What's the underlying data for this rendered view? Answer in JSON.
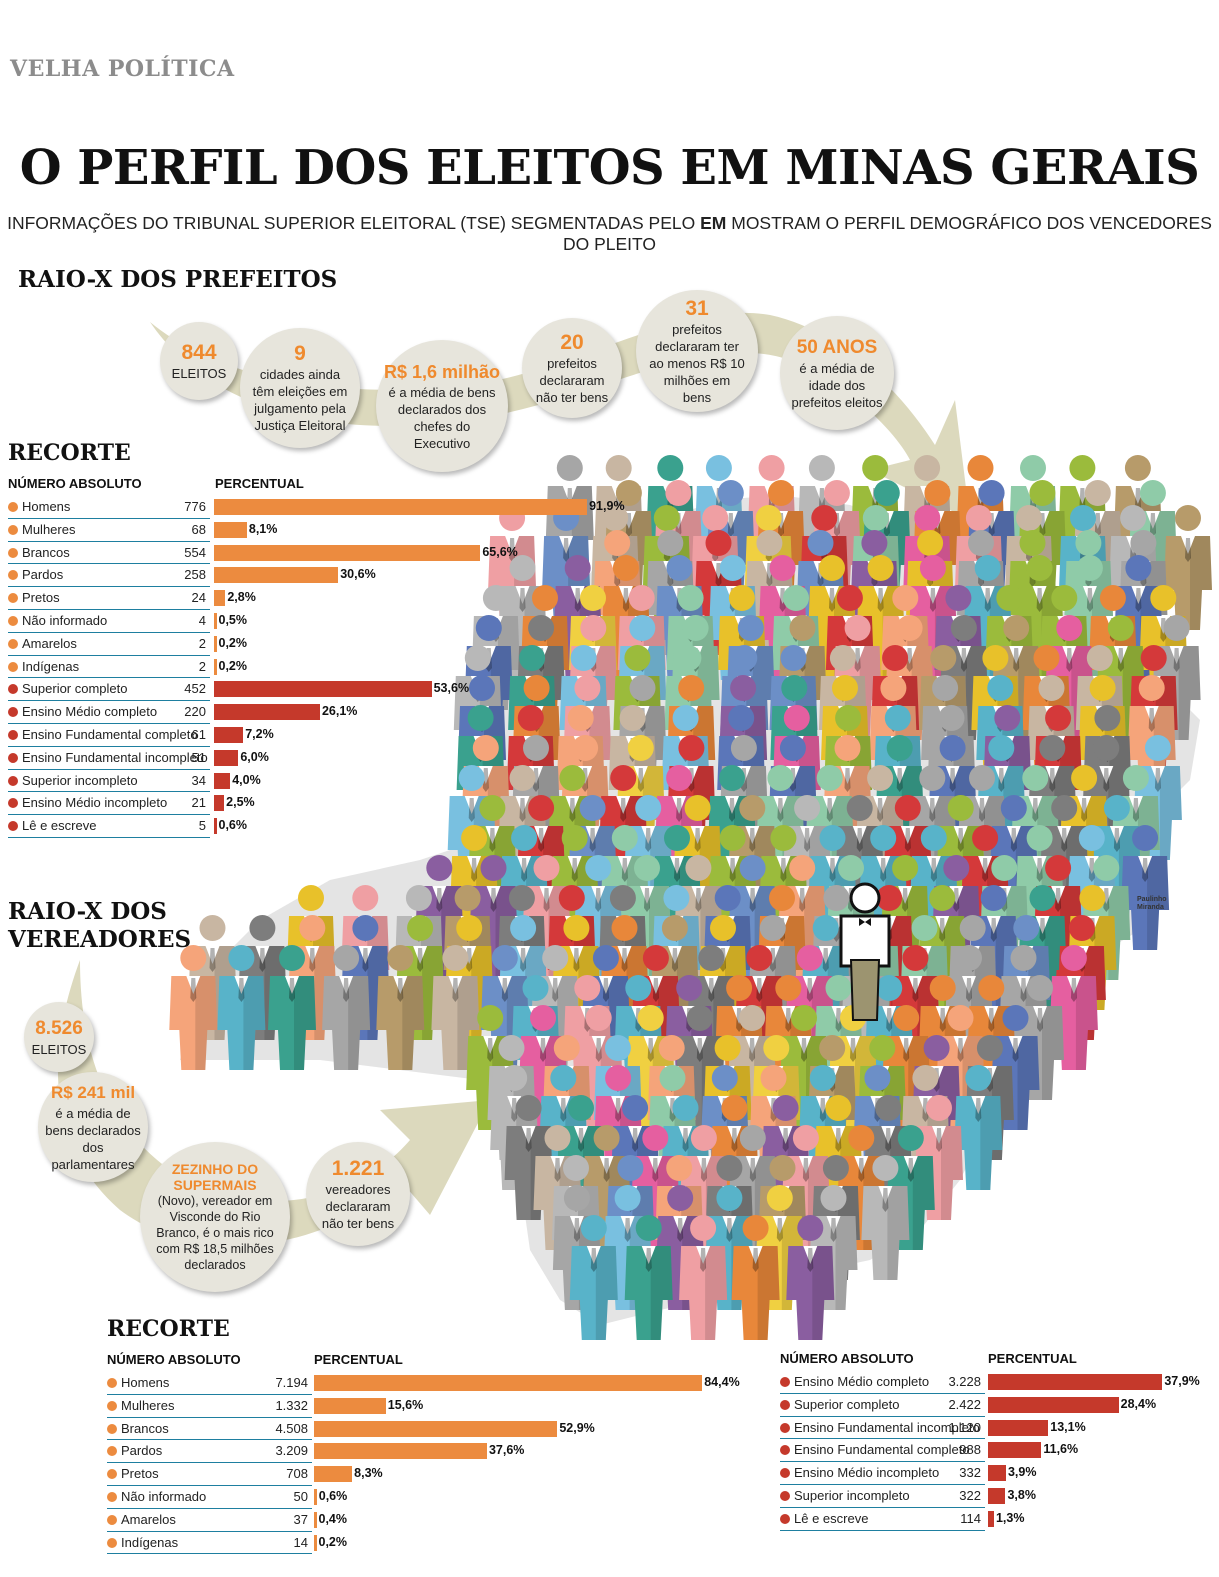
{
  "section_tag": "VELHA POLÍTICA",
  "title": "O PERFIL DOS ELEITOS EM MINAS GERAIS",
  "subtitle": {
    "before": "INFORMAÇÕES DO TRIBUNAL SUPERIOR ELEITORAL (TSE) SEGMENTADAS PELO ",
    "em": "EM",
    "after": " MOSTRAM O PERFIL DEMOGRÁFICO DOS VENCEDORES DO PLEITO"
  },
  "prefeitos": {
    "heading": "RAIO-X DOS PREFEITOS",
    "stats": [
      {
        "num": "844",
        "text": "ELEITOS"
      },
      {
        "num": "9",
        "text": "cidades ainda têm eleições em julgamento pela Justiça Eleitoral"
      },
      {
        "num": "R$ 1,6 milhão",
        "text": "é a média de bens declarados dos chefes do Executivo"
      },
      {
        "num": "20",
        "text": "prefeitos declararam não ter bens"
      },
      {
        "num": "31",
        "text": "prefeitos declararam ter ao menos R$ 10 milhões em bens"
      },
      {
        "num": "50 ANOS",
        "text": "é a média de idade dos prefeitos eleitos"
      }
    ]
  },
  "vereadores": {
    "heading": "RAIO-X DOS VEREADORES",
    "stats": [
      {
        "num": "8.526",
        "text": "ELEITOS"
      },
      {
        "num": "R$ 241 mil",
        "text": "é a média de bens declarados dos parlamentares"
      },
      {
        "num": "ZEZINHO DO SUPERMAIS",
        "text": "(Novo), vereador em Visconde do Rio Branco, é o mais rico com R$ 18,5 milhões declarados"
      },
      {
        "num": "1.221",
        "text": "vereadores declararam não ter bens"
      }
    ]
  },
  "labels": {
    "recorte": "RECORTE",
    "numero_absoluto": "NÚMERO ABSOLUTO",
    "percentual": "PERCENTUAL",
    "credit_1": "Paulinho",
    "credit_2": "Miranda"
  },
  "colors": {
    "orange": "#ec8b3f",
    "red": "#c5392b",
    "stat_bg": "#e7e5dc",
    "arrow": "#dcd9bd",
    "map": "#e4e4e4",
    "rule": "#1e7fa0"
  },
  "chart_data": [
    {
      "type": "bar",
      "title": "RECORTE",
      "xlabel": "PERCENTUAL",
      "ylabel": "NÚMERO ABSOLUTO",
      "categories": [
        "Homens",
        "Mulheres",
        "Brancos",
        "Pardos",
        "Pretos",
        "Não informado",
        "Amarelos",
        "Indígenas",
        "Superior completo",
        "Ensino Médio completo",
        "Ensino Fundamental completo",
        "Ensino Fundamental incompleto",
        "Superior incompleto",
        "Ensino Médio incompleto",
        "Lê e escreve"
      ],
      "absolute": [
        "776",
        "68",
        "554",
        "258",
        "24",
        "4",
        "2",
        "2",
        "452",
        "220",
        "61",
        "51",
        "34",
        "21",
        "5"
      ],
      "values": [
        91.9,
        8.1,
        65.6,
        30.6,
        2.8,
        0.5,
        0.2,
        0.2,
        53.6,
        26.1,
        7.2,
        6.0,
        4.0,
        2.5,
        0.6
      ],
      "value_labels": [
        "91,9%",
        "8,1%",
        "65,6%",
        "30,6%",
        "2,8%",
        "0,5%",
        "0,2%",
        "0,2%",
        "53,6%",
        "26,1%",
        "7,2%",
        "6,0%",
        "4,0%",
        "2,5%",
        "0,6%"
      ],
      "groups": [
        "orange",
        "orange",
        "orange",
        "orange",
        "orange",
        "orange",
        "orange",
        "orange",
        "red",
        "red",
        "red",
        "red",
        "red",
        "red",
        "red"
      ]
    },
    {
      "type": "bar",
      "title": "RECORTE",
      "xlabel": "PERCENTUAL",
      "ylabel": "NÚMERO ABSOLUTO",
      "categories": [
        "Homens",
        "Mulheres",
        "Brancos",
        "Pardos",
        "Pretos",
        "Não informado",
        "Amarelos",
        "Indígenas"
      ],
      "absolute": [
        "7.194",
        "1.332",
        "4.508",
        "3.209",
        "708",
        "50",
        "37",
        "14"
      ],
      "values": [
        84.4,
        15.6,
        52.9,
        37.6,
        8.3,
        0.6,
        0.4,
        0.2
      ],
      "value_labels": [
        "84,4%",
        "15,6%",
        "52,9%",
        "37,6%",
        "8,3%",
        "0,6%",
        "0,4%",
        "0,2%"
      ],
      "groups": [
        "orange",
        "orange",
        "orange",
        "orange",
        "orange",
        "orange",
        "orange",
        "orange"
      ]
    },
    {
      "type": "bar",
      "xlabel": "PERCENTUAL",
      "ylabel": "NÚMERO ABSOLUTO",
      "categories": [
        "Ensino Médio completo",
        "Superior completo",
        "Ensino Fundamental incompleto",
        "Ensino Fundamental completo",
        "Ensino Médio incompleto",
        "Superior incompleto",
        "Lê e escreve"
      ],
      "absolute": [
        "3.228",
        "2.422",
        "1.120",
        "988",
        "332",
        "322",
        "114"
      ],
      "values": [
        37.9,
        28.4,
        13.1,
        11.6,
        3.9,
        3.8,
        1.3
      ],
      "value_labels": [
        "37,9%",
        "28,4%",
        "13,1%",
        "11,6%",
        "3,9%",
        "3,8%",
        "1,3%"
      ],
      "groups": [
        "red",
        "red",
        "red",
        "red",
        "red",
        "red",
        "red"
      ]
    }
  ]
}
